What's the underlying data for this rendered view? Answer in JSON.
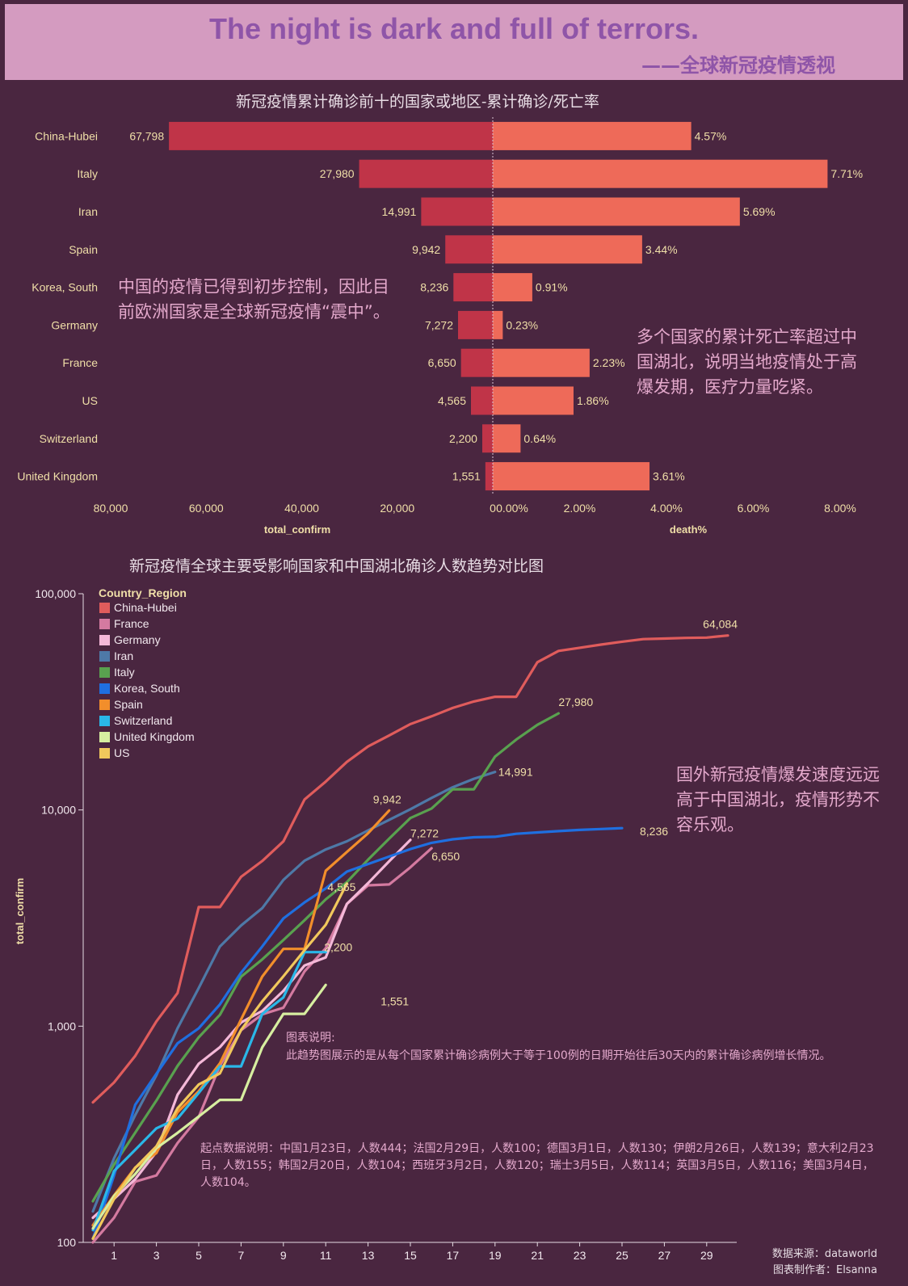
{
  "header": {
    "title": "The night is dark and full of terrors.",
    "subtitle": "——全球新冠疫情透视"
  },
  "chart1_title": "新冠疫情累计确诊前十的国家或地区-累计确诊/死亡率",
  "chart2_title": "新冠疫情全球主要受影响国家和中国湖北确诊人数趋势对比图",
  "notes": {
    "note1": "中国的疫情已得到初步控制，因此目前欧洲国家是全球新冠疫情“震中”。",
    "note2": "多个国家的累计死亡率超过中国湖北，说明当地疫情处于高爆发期，医疗力量吃紧。",
    "note3": "国外新冠疫情爆发速度远远高于中国湖北，疫情形势不容乐观。",
    "note4_title": "图表说明:",
    "note4_body": "此趋势图展示的是从每个国家累计确诊病例大于等于100例的日期开始往后30天内的累计确诊病例增长情况。",
    "note5": "起点数据说明：中国1月23日，人数444；法国2月29日，人数100；德国3月1日，人数130；伊朗2月26日，人数139；意大利2月23日，人数155；韩国2月20日，人数104；西班牙3月2日，人数120；瑞士3月5日，人数114；英国3月5日，人数116；美国3月4日，人数104。"
  },
  "footer": {
    "source": "数据来源：dataworld",
    "author": "图表制作者：Elsanna"
  },
  "colors": {
    "bg": "#4a2640",
    "bar_confirm": "#c03448",
    "bar_death": "#ee6a59",
    "label": "#f0dfa8"
  },
  "chart_data": [
    {
      "type": "bar",
      "categories": [
        "China-Hubei",
        "Italy",
        "Iran",
        "Spain",
        "Korea, South",
        "Germany",
        "France",
        "US",
        "Switzerland",
        "United Kingdom"
      ],
      "series": [
        {
          "name": "total_confirm",
          "values": [
            67798,
            27980,
            14991,
            9942,
            8236,
            7272,
            6650,
            4565,
            2200,
            1551
          ],
          "labels": [
            "67,798",
            "27,980",
            "14,991",
            "9,942",
            "8,236",
            "7,272",
            "6,650",
            "4,565",
            "2,200",
            "1,551"
          ]
        },
        {
          "name": "death%",
          "values": [
            4.57,
            7.71,
            5.69,
            3.44,
            0.91,
            0.23,
            2.23,
            1.86,
            0.64,
            3.61
          ],
          "labels": [
            "4.57%",
            "7.71%",
            "5.69%",
            "3.44%",
            "0.91%",
            "0.23%",
            "2.23%",
            "1.86%",
            "0.64%",
            "3.61%"
          ]
        }
      ],
      "xlabel_left": "total_confirm",
      "xlabel_right": "death%",
      "xlim_left": [
        0,
        80000
      ],
      "xlim_right": [
        0,
        8
      ],
      "ticks_left": [
        "80,000",
        "60,000",
        "40,000",
        "20,000",
        "0"
      ],
      "ticks_right": [
        "0.00%",
        "2.00%",
        "4.00%",
        "6.00%",
        "8.00%"
      ]
    },
    {
      "type": "line",
      "yscale": "log",
      "ylabel": "total_confirm",
      "ylim": [
        100,
        100000
      ],
      "yticks": [
        "100",
        "1,000",
        "10,000",
        "100,000"
      ],
      "xlim": [
        0,
        30
      ],
      "xticks": [
        "1",
        "3",
        "5",
        "7",
        "9",
        "11",
        "13",
        "15",
        "17",
        "19",
        "21",
        "23",
        "25",
        "27",
        "29"
      ],
      "legend_title": "Country_Region",
      "legend_position": "top-left",
      "series": [
        {
          "name": "China-Hubei",
          "color": "#e05c5c",
          "end_label": "64,084",
          "x": [
            0,
            1,
            2,
            3,
            4,
            5,
            6,
            7,
            8,
            9,
            10,
            11,
            12,
            13,
            14,
            15,
            16,
            17,
            18,
            19,
            20,
            21,
            22,
            23,
            24,
            25,
            26,
            27,
            28,
            29,
            30
          ],
          "y": [
            444,
            549,
            729,
            1052,
            1423,
            3554,
            3554,
            4903,
            5806,
            7153,
            11177,
            13522,
            16678,
            19665,
            22112,
            24953,
            27100,
            29631,
            31728,
            33366,
            33366,
            48206,
            54406,
            56249,
            58182,
            59989,
            61682,
            62031,
            62442,
            62662,
            64084
          ]
        },
        {
          "name": "France",
          "color": "#d47aa0",
          "end_label": "6,650",
          "x": [
            0,
            1,
            2,
            3,
            4,
            5,
            6,
            7,
            8,
            9,
            10,
            11,
            12,
            13,
            14,
            15,
            16
          ],
          "y": [
            100,
            130,
            191,
            204,
            288,
            380,
            656,
            957,
            1134,
            1217,
            1792,
            2290,
            3672,
            4480,
            4523,
            5429,
            6650
          ]
        },
        {
          "name": "Germany",
          "color": "#f4b8d8",
          "end_label": "7,272",
          "x": [
            0,
            1,
            2,
            3,
            4,
            5,
            6,
            7,
            8,
            9,
            10,
            11,
            12,
            13,
            14,
            15
          ],
          "y": [
            130,
            159,
            196,
            262,
            482,
            670,
            799,
            1040,
            1176,
            1457,
            1908,
            2078,
            3675,
            4585,
            5795,
            7272
          ]
        },
        {
          "name": "Iran",
          "color": "#4e79a7",
          "end_label": "14,991",
          "x": [
            0,
            1,
            2,
            3,
            4,
            5,
            6,
            7,
            8,
            9,
            10,
            11,
            12,
            13,
            14,
            15,
            16,
            17,
            18,
            19
          ],
          "y": [
            139,
            245,
            388,
            593,
            978,
            1501,
            2336,
            2922,
            3513,
            4747,
            5823,
            6566,
            7161,
            8042,
            9000,
            10075,
            11364,
            12729,
            13938,
            14991
          ]
        },
        {
          "name": "Italy",
          "color": "#59a14f",
          "end_label": "27,980",
          "x": [
            0,
            1,
            2,
            3,
            4,
            5,
            6,
            7,
            8,
            9,
            10,
            11,
            12,
            13,
            14,
            15,
            16,
            17,
            18,
            19,
            20,
            21,
            22
          ],
          "y": [
            155,
            229,
            322,
            453,
            655,
            888,
            1128,
            1694,
            2036,
            2502,
            3089,
            3858,
            4636,
            5883,
            7375,
            9172,
            10149,
            12462,
            12462,
            17660,
            21157,
            24747,
            27980
          ]
        },
        {
          "name": "Korea, South",
          "color": "#1f6fe0",
          "end_label": "8,236",
          "x": [
            0,
            1,
            2,
            3,
            4,
            5,
            6,
            7,
            8,
            9,
            10,
            11,
            12,
            13,
            14,
            15,
            16,
            17,
            18,
            19,
            20,
            21,
            22,
            23,
            24,
            25
          ],
          "y": [
            104,
            204,
            433,
            602,
            833,
            977,
            1261,
            1766,
            2337,
            3150,
            3736,
            4335,
            5186,
            5621,
            6088,
            6593,
            7041,
            7314,
            7478,
            7513,
            7755,
            7869,
            7979,
            8086,
            8162,
            8236
          ]
        },
        {
          "name": "Spain",
          "color": "#f28e2b",
          "end_label": "9,942",
          "x": [
            0,
            1,
            2,
            3,
            4,
            5,
            6,
            7,
            8,
            9,
            10,
            11,
            12,
            13,
            14
          ],
          "y": [
            120,
            165,
            222,
            259,
            400,
            500,
            673,
            1073,
            1695,
            2277,
            2277,
            5232,
            6391,
            7798,
            9942
          ]
        },
        {
          "name": "Switzerland",
          "color": "#2ab7e8",
          "end_label": "2,200",
          "x": [
            0,
            1,
            2,
            3,
            4,
            5,
            6,
            7,
            8,
            9,
            10,
            11
          ],
          "y": [
            114,
            214,
            268,
            337,
            374,
            491,
            652,
            652,
            1139,
            1359,
            2200,
            2200
          ]
        },
        {
          "name": "United Kingdom",
          "color": "#d7eea0",
          "end_label": "1,551",
          "x": [
            0,
            1,
            2,
            3,
            4,
            5,
            6,
            7,
            8,
            9,
            10,
            11
          ],
          "y": [
            116,
            164,
            207,
            273,
            321,
            382,
            456,
            456,
            798,
            1140,
            1140,
            1551
          ]
        },
        {
          "name": "US",
          "color": "#f1c85c",
          "end_label": "4,565",
          "x": [
            0,
            1,
            2,
            3,
            4,
            5,
            6,
            7,
            8,
            9,
            10,
            11,
            12
          ],
          "y": [
            104,
            159,
            221,
            278,
            417,
            537,
            605,
            960,
            1302,
            1701,
            2247,
            2943,
            4565
          ]
        }
      ]
    }
  ]
}
